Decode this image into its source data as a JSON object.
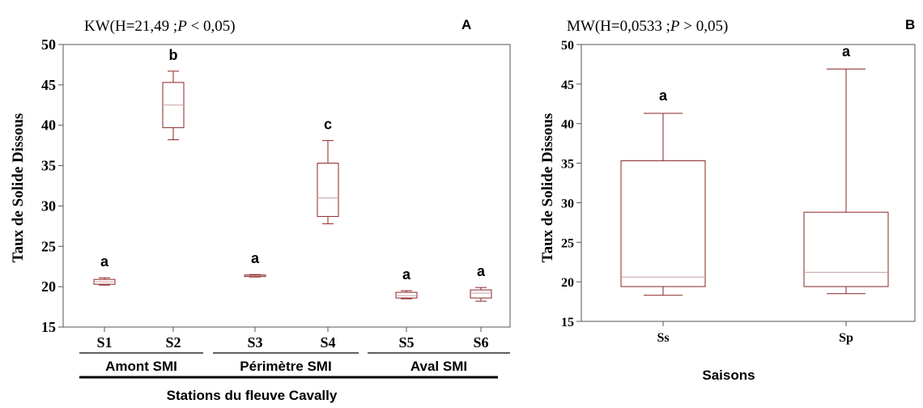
{
  "colors": {
    "box": "#8b2323",
    "frame": "#555555",
    "text": "#000000",
    "group_line": "#000000"
  },
  "chart_data": [
    {
      "type": "boxplot",
      "panel_label": "A",
      "stat_prefix": "KW(H=21,49 ;",
      "stat_p": "P",
      "stat_suffix": " < 0,05)",
      "ylabel": "Taux de Solide Dissous",
      "xlabel": "Stations  du fleuve Cavally",
      "ylim": [
        15,
        50
      ],
      "yticks": [
        "15",
        "20",
        "25",
        "30",
        "35",
        "40",
        "45",
        "50"
      ],
      "grid": false,
      "categories": [
        "S1",
        "S2",
        "S3",
        "S4",
        "S5",
        "S6"
      ],
      "groups": [
        {
          "label": "Amont SMI",
          "members": [
            "S1",
            "S2"
          ]
        },
        {
          "label": "Périmètre SMI",
          "members": [
            "S3",
            "S4"
          ]
        },
        {
          "label": "Aval SMI",
          "members": [
            "S5",
            "S6"
          ]
        }
      ],
      "boxes": [
        {
          "name": "S1",
          "min": 20.2,
          "q1": 20.3,
          "median": 20.6,
          "q3": 20.9,
          "max": 21.1,
          "letter": "a"
        },
        {
          "name": "S2",
          "min": 38.2,
          "q1": 39.7,
          "median": 42.5,
          "q3": 45.3,
          "max": 46.7,
          "letter": "b"
        },
        {
          "name": "S3",
          "min": 21.2,
          "q1": 21.25,
          "median": 21.35,
          "q3": 21.45,
          "max": 21.5,
          "letter": "a"
        },
        {
          "name": "S4",
          "min": 27.8,
          "q1": 28.7,
          "median": 31.0,
          "q3": 35.3,
          "max": 38.1,
          "letter": "c"
        },
        {
          "name": "S5",
          "min": 18.5,
          "q1": 18.6,
          "median": 18.9,
          "q3": 19.3,
          "max": 19.5,
          "letter": "a"
        },
        {
          "name": "S6",
          "min": 18.2,
          "q1": 18.6,
          "median": 19.2,
          "q3": 19.6,
          "max": 19.9,
          "letter": "a"
        }
      ]
    },
    {
      "type": "boxplot",
      "panel_label": "B",
      "stat_prefix": "MW(H=0,0533 ;",
      "stat_p": "P",
      "stat_suffix": " > 0,05)",
      "ylabel": "Taux de Solide Dissous",
      "xlabel": "Saisons",
      "ylim": [
        15,
        50
      ],
      "yticks": [
        "15",
        "20",
        "25",
        "30",
        "35",
        "40",
        "45",
        "50"
      ],
      "grid": false,
      "categories": [
        "Ss",
        "Sp"
      ],
      "boxes": [
        {
          "name": "Ss",
          "min": 18.3,
          "q1": 19.4,
          "median": 20.6,
          "q3": 35.3,
          "max": 41.3,
          "letter": "a"
        },
        {
          "name": "Sp",
          "min": 18.5,
          "q1": 19.4,
          "median": 21.2,
          "q3": 28.8,
          "max": 46.9,
          "letter": "a"
        }
      ]
    }
  ]
}
